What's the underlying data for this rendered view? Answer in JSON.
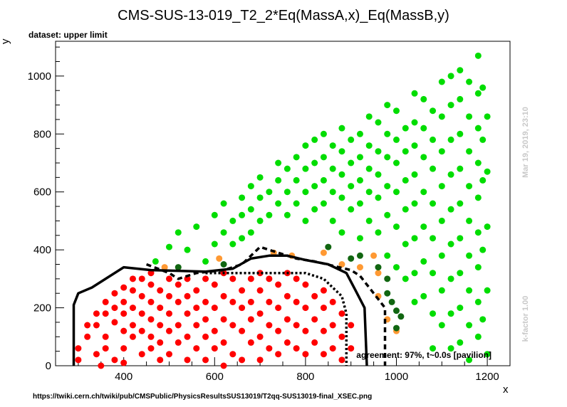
{
  "title": "CMS-SUS-13-019_T2_2*Eq(MassA,x)_Eq(MassB,y)",
  "dataset_label": "dataset: upper limit",
  "footer_url": "https://twiki.cern.ch/twiki/pub/CMSPublic/PhysicsResultsSUS13019/T2qq-SUS13019-final_XSEC.png",
  "timestamp": "Mar 19, 2019, 23:10",
  "kfactor": "k-factor 1.00",
  "agreement": "agreement: 97%, t~0.0s [pavilion]",
  "colors": {
    "excluded": "#ff0000",
    "allowed": "#00dd00",
    "excluded_but_allowed": "#ff9933",
    "allowed_but_excluded": "#116611",
    "curve": "#000000"
  },
  "chart_data": {
    "type": "scatter",
    "xlabel": "x",
    "ylabel": "y",
    "xlim": [
      250,
      1250
    ],
    "ylim": [
      0,
      1120
    ],
    "xticks": [
      400,
      600,
      800,
      1000,
      1200
    ],
    "yticks": [
      0,
      200,
      400,
      600,
      800,
      1000
    ],
    "grid": false,
    "legend": "none",
    "excluded_points": [
      [
        300,
        20
      ],
      [
        300,
        60
      ],
      [
        320,
        140
      ],
      [
        320,
        100
      ],
      [
        340,
        180
      ],
      [
        340,
        140
      ],
      [
        340,
        40
      ],
      [
        350,
        0
      ],
      [
        360,
        220
      ],
      [
        360,
        180
      ],
      [
        360,
        100
      ],
      [
        360,
        60
      ],
      [
        380,
        250
      ],
      [
        380,
        200
      ],
      [
        380,
        150
      ],
      [
        380,
        20
      ],
      [
        400,
        270
      ],
      [
        400,
        220
      ],
      [
        400,
        180
      ],
      [
        400,
        120
      ],
      [
        400,
        60
      ],
      [
        400,
        10
      ],
      [
        420,
        300
      ],
      [
        420,
        260
      ],
      [
        420,
        200
      ],
      [
        420,
        140
      ],
      [
        420,
        100
      ],
      [
        440,
        300
      ],
      [
        440,
        240
      ],
      [
        440,
        180
      ],
      [
        440,
        120
      ],
      [
        440,
        40
      ],
      [
        460,
        320
      ],
      [
        460,
        280
      ],
      [
        460,
        220
      ],
      [
        460,
        160
      ],
      [
        460,
        100
      ],
      [
        460,
        60
      ],
      [
        480,
        260
      ],
      [
        480,
        200
      ],
      [
        480,
        140
      ],
      [
        480,
        80
      ],
      [
        480,
        20
      ],
      [
        500,
        300
      ],
      [
        500,
        240
      ],
      [
        500,
        180
      ],
      [
        500,
        120
      ],
      [
        500,
        40
      ],
      [
        520,
        280
      ],
      [
        520,
        220
      ],
      [
        520,
        140
      ],
      [
        520,
        80
      ],
      [
        540,
        300
      ],
      [
        540,
        240
      ],
      [
        540,
        180
      ],
      [
        540,
        100
      ],
      [
        540,
        20
      ],
      [
        560,
        260
      ],
      [
        560,
        200
      ],
      [
        560,
        140
      ],
      [
        560,
        60
      ],
      [
        580,
        300
      ],
      [
        580,
        220
      ],
      [
        580,
        160
      ],
      [
        580,
        100
      ],
      [
        580,
        20
      ],
      [
        600,
        280
      ],
      [
        600,
        200
      ],
      [
        600,
        120
      ],
      [
        600,
        60
      ],
      [
        620,
        320
      ],
      [
        620,
        240
      ],
      [
        620,
        160
      ],
      [
        620,
        80
      ],
      [
        620,
        0
      ],
      [
        640,
        300
      ],
      [
        640,
        220
      ],
      [
        640,
        140
      ],
      [
        640,
        40
      ],
      [
        660,
        260
      ],
      [
        660,
        200
      ],
      [
        660,
        120
      ],
      [
        660,
        20
      ],
      [
        680,
        300
      ],
      [
        680,
        220
      ],
      [
        680,
        160
      ],
      [
        680,
        80
      ],
      [
        700,
        320
      ],
      [
        700,
        260
      ],
      [
        700,
        180
      ],
      [
        700,
        100
      ],
      [
        700,
        20
      ],
      [
        720,
        300
      ],
      [
        720,
        220
      ],
      [
        720,
        140
      ],
      [
        720,
        60
      ],
      [
        740,
        280
      ],
      [
        740,
        200
      ],
      [
        740,
        120
      ],
      [
        740,
        40
      ],
      [
        760,
        320
      ],
      [
        760,
        240
      ],
      [
        760,
        160
      ],
      [
        760,
        80
      ],
      [
        780,
        300
      ],
      [
        780,
        220
      ],
      [
        780,
        140
      ],
      [
        780,
        60
      ],
      [
        800,
        280
      ],
      [
        800,
        200
      ],
      [
        800,
        120
      ],
      [
        800,
        40
      ],
      [
        820,
        240
      ],
      [
        820,
        160
      ],
      [
        820,
        80
      ],
      [
        840,
        260
      ],
      [
        840,
        200
      ],
      [
        840,
        120
      ],
      [
        840,
        40
      ],
      [
        860,
        220
      ],
      [
        860,
        140
      ],
      [
        860,
        60
      ],
      [
        880,
        180
      ],
      [
        880,
        100
      ],
      [
        880,
        20
      ],
      [
        900,
        140
      ],
      [
        900,
        60
      ]
    ],
    "allowed_points": [
      [
        470,
        360
      ],
      [
        500,
        410
      ],
      [
        520,
        460
      ],
      [
        540,
        400
      ],
      [
        560,
        480
      ],
      [
        580,
        360
      ],
      [
        600,
        520
      ],
      [
        600,
        420
      ],
      [
        620,
        560
      ],
      [
        620,
        460
      ],
      [
        640,
        500
      ],
      [
        640,
        420
      ],
      [
        660,
        580
      ],
      [
        660,
        520
      ],
      [
        660,
        440
      ],
      [
        680,
        620
      ],
      [
        680,
        540
      ],
      [
        680,
        460
      ],
      [
        700,
        650
      ],
      [
        700,
        580
      ],
      [
        700,
        500
      ],
      [
        720,
        600
      ],
      [
        720,
        520
      ],
      [
        740,
        700
      ],
      [
        740,
        640
      ],
      [
        740,
        560
      ],
      [
        760,
        680
      ],
      [
        760,
        600
      ],
      [
        760,
        520
      ],
      [
        780,
        720
      ],
      [
        780,
        640
      ],
      [
        780,
        560
      ],
      [
        800,
        760
      ],
      [
        800,
        680
      ],
      [
        800,
        600
      ],
      [
        800,
        500
      ],
      [
        820,
        780
      ],
      [
        820,
        700
      ],
      [
        820,
        620
      ],
      [
        820,
        540
      ],
      [
        840,
        800
      ],
      [
        840,
        720
      ],
      [
        840,
        640
      ],
      [
        840,
        560
      ],
      [
        860,
        760
      ],
      [
        860,
        680
      ],
      [
        860,
        600
      ],
      [
        860,
        500
      ],
      [
        880,
        820
      ],
      [
        880,
        740
      ],
      [
        880,
        660
      ],
      [
        880,
        580
      ],
      [
        880,
        460
      ],
      [
        900,
        780
      ],
      [
        900,
        700
      ],
      [
        900,
        620
      ],
      [
        900,
        540
      ],
      [
        920,
        800
      ],
      [
        920,
        720
      ],
      [
        920,
        640
      ],
      [
        920,
        560
      ],
      [
        920,
        440
      ],
      [
        940,
        860
      ],
      [
        940,
        760
      ],
      [
        940,
        680
      ],
      [
        940,
        600
      ],
      [
        940,
        500
      ],
      [
        960,
        840
      ],
      [
        960,
        740
      ],
      [
        960,
        660
      ],
      [
        960,
        580
      ],
      [
        960,
        460
      ],
      [
        980,
        900
      ],
      [
        980,
        800
      ],
      [
        980,
        720
      ],
      [
        980,
        620
      ],
      [
        980,
        520
      ],
      [
        980,
        380
      ],
      [
        1000,
        880
      ],
      [
        1000,
        780
      ],
      [
        1000,
        700
      ],
      [
        1000,
        600
      ],
      [
        1000,
        480
      ],
      [
        1000,
        340
      ],
      [
        1020,
        820
      ],
      [
        1020,
        740
      ],
      [
        1020,
        640
      ],
      [
        1020,
        540
      ],
      [
        1020,
        420
      ],
      [
        1020,
        300
      ],
      [
        1040,
        940
      ],
      [
        1040,
        840
      ],
      [
        1040,
        760
      ],
      [
        1040,
        660
      ],
      [
        1040,
        560
      ],
      [
        1040,
        440
      ],
      [
        1040,
        320
      ],
      [
        1040,
        220
      ],
      [
        1060,
        920
      ],
      [
        1060,
        820
      ],
      [
        1060,
        720
      ],
      [
        1060,
        600
      ],
      [
        1060,
        480
      ],
      [
        1060,
        360
      ],
      [
        1060,
        240
      ],
      [
        1080,
        880
      ],
      [
        1080,
        780
      ],
      [
        1080,
        680
      ],
      [
        1080,
        560
      ],
      [
        1080,
        440
      ],
      [
        1080,
        320
      ],
      [
        1080,
        180
      ],
      [
        1080,
        60
      ],
      [
        1100,
        980
      ],
      [
        1100,
        860
      ],
      [
        1100,
        740
      ],
      [
        1100,
        620
      ],
      [
        1100,
        500
      ],
      [
        1100,
        380
      ],
      [
        1100,
        260
      ],
      [
        1100,
        140
      ],
      [
        1120,
        1000
      ],
      [
        1120,
        900
      ],
      [
        1120,
        780
      ],
      [
        1120,
        660
      ],
      [
        1120,
        540
      ],
      [
        1120,
        420
      ],
      [
        1120,
        300
      ],
      [
        1120,
        180
      ],
      [
        1120,
        60
      ],
      [
        1140,
        1020
      ],
      [
        1140,
        920
      ],
      [
        1140,
        800
      ],
      [
        1140,
        680
      ],
      [
        1140,
        560
      ],
      [
        1140,
        440
      ],
      [
        1140,
        320
      ],
      [
        1140,
        200
      ],
      [
        1140,
        80
      ],
      [
        1160,
        980
      ],
      [
        1160,
        860
      ],
      [
        1160,
        740
      ],
      [
        1160,
        620
      ],
      [
        1160,
        500
      ],
      [
        1160,
        380
      ],
      [
        1160,
        260
      ],
      [
        1160,
        140
      ],
      [
        1160,
        20
      ],
      [
        1180,
        1070
      ],
      [
        1180,
        940
      ],
      [
        1180,
        820
      ],
      [
        1180,
        700
      ],
      [
        1180,
        580
      ],
      [
        1180,
        460
      ],
      [
        1180,
        340
      ],
      [
        1180,
        220
      ],
      [
        1180,
        100
      ],
      [
        1190,
        960
      ],
      [
        1190,
        780
      ],
      [
        1190,
        640
      ],
      [
        1190,
        400
      ],
      [
        1190,
        160
      ],
      [
        1200,
        860
      ],
      [
        1200,
        670
      ],
      [
        1200,
        480
      ],
      [
        1200,
        260
      ],
      [
        1200,
        40
      ]
    ],
    "excluded_but_allowed_points": [
      [
        490,
        340
      ],
      [
        610,
        370
      ],
      [
        730,
        390
      ],
      [
        770,
        380
      ],
      [
        840,
        390
      ],
      [
        880,
        350
      ],
      [
        920,
        340
      ],
      [
        960,
        320
      ],
      [
        960,
        240
      ],
      [
        980,
        160
      ],
      [
        950,
        380
      ],
      [
        1000,
        120
      ]
    ],
    "allowed_but_excluded_points": [
      [
        520,
        340
      ],
      [
        620,
        350
      ],
      [
        850,
        410
      ],
      [
        900,
        370
      ],
      [
        920,
        380
      ],
      [
        960,
        340
      ],
      [
        980,
        300
      ],
      [
        980,
        250
      ],
      [
        990,
        220
      ],
      [
        1000,
        190
      ],
      [
        1010,
        170
      ],
      [
        1000,
        130
      ]
    ],
    "curves": [
      {
        "style": "solid",
        "points": [
          [
            290,
            0
          ],
          [
            290,
            210
          ],
          [
            300,
            250
          ],
          [
            330,
            270
          ],
          [
            360,
            300
          ],
          [
            400,
            340
          ],
          [
            460,
            330
          ],
          [
            580,
            325
          ],
          [
            640,
            335
          ],
          [
            680,
            370
          ],
          [
            720,
            380
          ],
          [
            760,
            380
          ],
          [
            800,
            365
          ],
          [
            850,
            350
          ],
          [
            890,
            320
          ],
          [
            910,
            260
          ],
          [
            930,
            200
          ],
          [
            935,
            0
          ]
        ]
      },
      {
        "style": "dashed",
        "points": [
          [
            450,
            350
          ],
          [
            500,
            320
          ],
          [
            520,
            300
          ],
          [
            560,
            320
          ],
          [
            620,
            330
          ],
          [
            660,
            350
          ],
          [
            700,
            410
          ],
          [
            740,
            390
          ],
          [
            780,
            370
          ],
          [
            820,
            360
          ],
          [
            860,
            345
          ],
          [
            900,
            330
          ],
          [
            920,
            310
          ],
          [
            950,
            250
          ],
          [
            975,
            200
          ],
          [
            975,
            0
          ]
        ]
      },
      {
        "style": "dotted",
        "points": [
          [
            580,
            320
          ],
          [
            800,
            320
          ],
          [
            840,
            300
          ],
          [
            880,
            240
          ],
          [
            890,
            180
          ],
          [
            890,
            0
          ]
        ]
      }
    ]
  }
}
